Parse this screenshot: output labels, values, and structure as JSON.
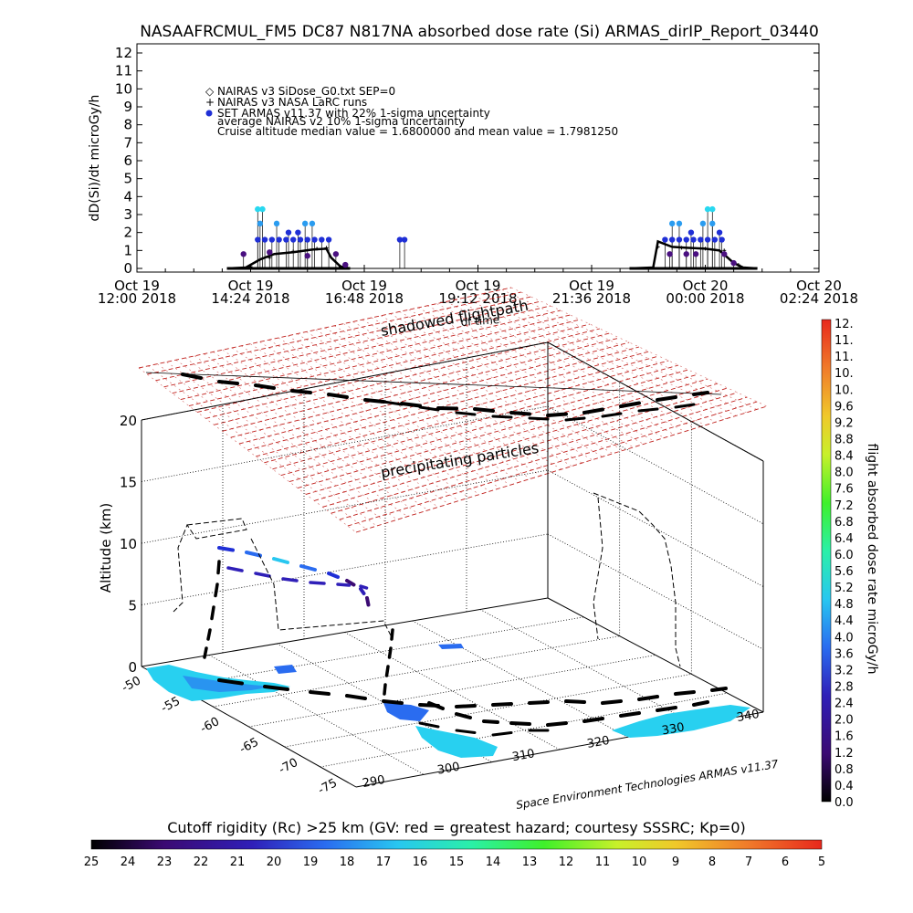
{
  "chart_data": [
    {
      "type": "scatter",
      "title": "NASAAFRCMUL_FM5 DC87 N817NA absorbed dose rate (Si) ARMAS_dirIP_Report_03440",
      "ylabel": "dD(Si)/dt microGy/h",
      "ylim": [
        0,
        12
      ],
      "yticks": [
        "0",
        "1",
        "2",
        "3",
        "4",
        "5",
        "6",
        "7",
        "8",
        "9",
        "10",
        "11",
        "12"
      ],
      "xticks": [
        {
          "line1": "Oct 19",
          "line2": "12:00 2018"
        },
        {
          "line1": "Oct 19",
          "line2": "14:24 2018"
        },
        {
          "line1": "Oct 19",
          "line2": "16:48 2018"
        },
        {
          "line1": "Oct 19",
          "line2": "19:12 2018"
        },
        {
          "line1": "Oct 19",
          "line2": "21:36 2018"
        },
        {
          "line1": "Oct 20",
          "line2": "00:00 2018"
        },
        {
          "line1": "Oct 20",
          "line2": "02:24 2018"
        }
      ],
      "legend": [
        {
          "symbol": "◇",
          "text": "NAIRAS v3 SiDose_G0.txt SEP=0"
        },
        {
          "symbol": "+",
          "text": "NAIRAS v3 NASA LaRC runs"
        },
        {
          "symbol": "●",
          "color": "#1f2fd6",
          "text": "SET ARMAS v11.37 with 22% 1-sigma uncertainty"
        },
        {
          "symbol": "",
          "text": "average NAIRAS v2 10% 1-sigma uncertainty"
        },
        {
          "symbol": "",
          "text": "Cruise altitude median value =  1.6800000 and mean value =  1.7981250"
        }
      ],
      "series": [
        {
          "name": "NAIRAS v3 SiDose_G0.txt SEP=0",
          "segments": [
            [
              [
                13.9,
                0
              ],
              [
                14.3,
                0.05
              ],
              [
                14.6,
                0.5
              ],
              [
                14.9,
                0.8
              ],
              [
                15.3,
                0.9
              ],
              [
                15.7,
                1.05
              ],
              [
                16.0,
                1.1
              ],
              [
                16.1,
                0.6
              ],
              [
                16.3,
                0.1
              ],
              [
                16.5,
                0
              ]
            ],
            [
              [
                22.4,
                0
              ],
              [
                22.9,
                0.05
              ],
              [
                23.0,
                1.5
              ],
              [
                23.3,
                1.2
              ],
              [
                23.6,
                1.15
              ],
              [
                24.0,
                1.1
              ],
              [
                24.3,
                1.0
              ],
              [
                24.6,
                0.3
              ],
              [
                24.8,
                0.05
              ],
              [
                25.1,
                0
              ]
            ]
          ]
        },
        {
          "name": "NAIRAS v3 NASA LaRC runs",
          "segments": [
            [
              [
                14.4,
                0.1
              ],
              [
                14.8,
                0.6
              ],
              [
                15.3,
                0.95
              ],
              [
                15.8,
                1.1
              ],
              [
                16.0,
                1.15
              ],
              [
                16.3,
                0.1
              ]
            ],
            [
              [
                23.0,
                1.2
              ],
              [
                23.5,
                1.15
              ],
              [
                24.0,
                1.1
              ],
              [
                24.4,
                1.0
              ],
              [
                24.7,
                0.2
              ]
            ]
          ]
        },
        {
          "name": "SET ARMAS v11.37",
          "points": [
            [
              14.55,
              1.6
            ],
            [
              14.7,
              1.6
            ],
            [
              14.85,
              1.6
            ],
            [
              15.0,
              1.6
            ],
            [
              15.15,
              1.6
            ],
            [
              15.3,
              1.6
            ],
            [
              15.45,
              1.6
            ],
            [
              15.6,
              1.6
            ],
            [
              15.75,
              1.6
            ],
            [
              15.9,
              1.6
            ],
            [
              16.05,
              1.6
            ],
            [
              14.6,
              2.5
            ],
            [
              14.95,
              2.5
            ],
            [
              15.55,
              2.5
            ],
            [
              15.7,
              2.5
            ],
            [
              14.55,
              3.3
            ],
            [
              14.65,
              3.3
            ],
            [
              15.2,
              2.0
            ],
            [
              15.4,
              2.0
            ],
            [
              14.25,
              0.8
            ],
            [
              14.8,
              0.9
            ],
            [
              15.6,
              0.7
            ],
            [
              16.2,
              0.8
            ],
            [
              16.4,
              0.2
            ],
            [
              17.55,
              1.6
            ],
            [
              17.65,
              1.6
            ],
            [
              23.15,
              1.6
            ],
            [
              23.3,
              1.6
            ],
            [
              23.45,
              1.6
            ],
            [
              23.6,
              1.6
            ],
            [
              23.75,
              1.6
            ],
            [
              23.9,
              1.6
            ],
            [
              24.05,
              1.6
            ],
            [
              24.2,
              1.6
            ],
            [
              24.35,
              1.6
            ],
            [
              23.3,
              2.5
            ],
            [
              23.45,
              2.5
            ],
            [
              23.95,
              2.5
            ],
            [
              24.15,
              2.5
            ],
            [
              24.05,
              3.3
            ],
            [
              24.15,
              3.3
            ],
            [
              23.7,
              2.0
            ],
            [
              24.3,
              2.0
            ],
            [
              23.25,
              0.8
            ],
            [
              23.6,
              0.8
            ],
            [
              23.8,
              0.8
            ],
            [
              24.4,
              0.8
            ],
            [
              24.6,
              0.3
            ]
          ]
        }
      ],
      "x_domain_hours": [
        12,
        26.4
      ]
    },
    {
      "type": "scatter",
      "ylabel": "Altitude (km)",
      "zticks": [
        "0",
        "5",
        "10",
        "15",
        "20"
      ],
      "latitude_ticks": [
        "-50",
        "-55",
        "-60",
        "-65",
        "-70",
        "-75"
      ],
      "longitude_ticks": [
        "290",
        "300",
        "310",
        "320",
        "330",
        "340"
      ],
      "labels": {
        "shadowed": "shadowed flightpath",
        "shadowed_sub": "of time",
        "precip": "precipitating particles"
      },
      "credit": "Space Environment Technologies ARMAS v11.37"
    },
    {
      "type": "heatmap",
      "ylabel": "flight absorbed dose rate microGy/h",
      "ticks": [
        "12.",
        "11.",
        "11.",
        "10.",
        "10.",
        "9.6",
        "9.2",
        "8.8",
        "8.4",
        "8.0",
        "7.6",
        "7.2",
        "6.8",
        "6.4",
        "6.0",
        "5.6",
        "5.2",
        "4.8",
        "4.4",
        "4.0",
        "3.6",
        "3.2",
        "2.8",
        "2.4",
        "2.0",
        "1.6",
        "1.2",
        "0.8",
        "0.4",
        "0.0"
      ]
    },
    {
      "type": "heatmap",
      "title": "Cutoff rigidity (Rc) >25 km (GV: red = greatest hazard; courtesy SSSRC; Kp=0)",
      "ticks": [
        "25",
        "24",
        "23",
        "22",
        "21",
        "20",
        "19",
        "18",
        "17",
        "16",
        "15",
        "14",
        "13",
        "12",
        "11",
        "10",
        "9",
        "8",
        "7",
        "6",
        "5"
      ]
    }
  ],
  "colors": {
    "armas": "#1f2fd6",
    "precip_grid": "#c0201c",
    "scale_stops": [
      "#000000",
      "#3b0a73",
      "#2f1fb8",
      "#2a6cf0",
      "#28c7f0",
      "#2af0a8",
      "#3ff02a",
      "#c8f02a",
      "#f0c82a",
      "#f07a2a",
      "#e8281c"
    ]
  }
}
